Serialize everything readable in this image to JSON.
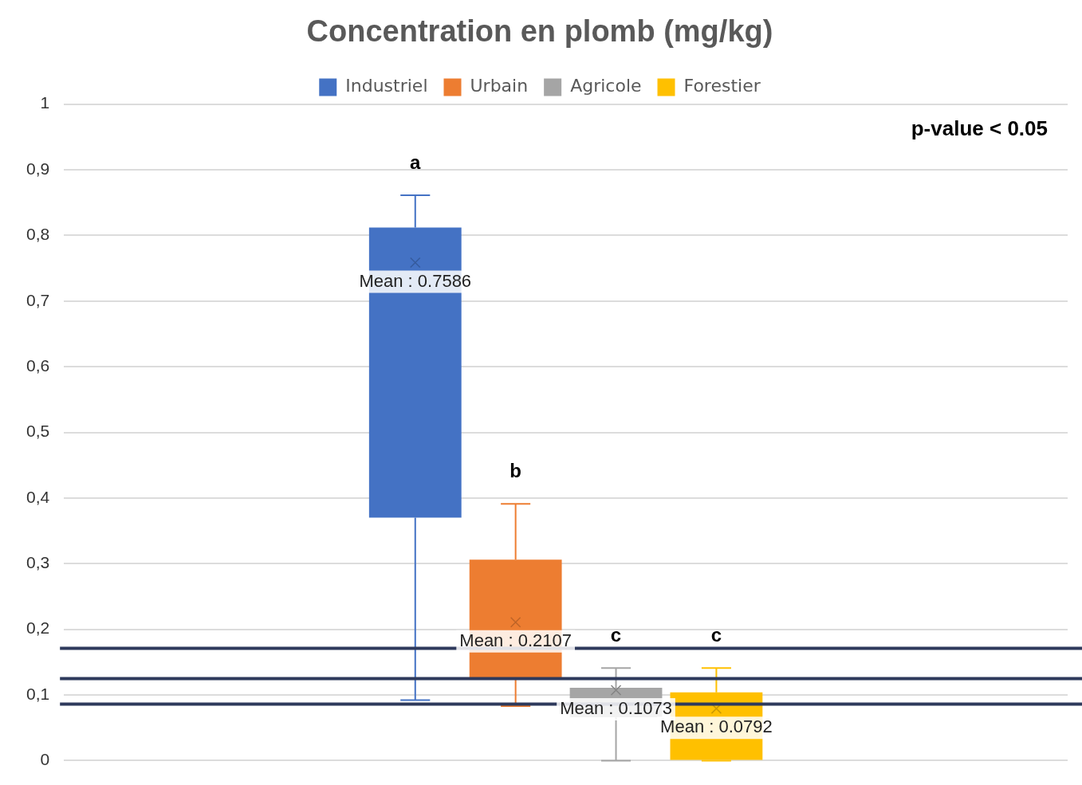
{
  "chart_data": {
    "type": "box",
    "title": "Concentration en plomb (mg/kg)",
    "categories": [
      null
    ],
    "series": [
      {
        "name": "Industriel",
        "color": "#4472c4",
        "boxes": [
          {
            "low": 0.092,
            "q1": 0.37,
            "q3": 0.812,
            "high": 0.861,
            "mean": 0.7586
          }
        ]
      },
      {
        "name": "Urbain",
        "color": "#ed7d31",
        "boxes": [
          {
            "low": 0.083,
            "q1": 0.124,
            "q3": 0.306,
            "high": 0.391,
            "mean": 0.2107
          }
        ]
      },
      {
        "name": "Agricole",
        "color": "#a5a5a5",
        "boxes": [
          {
            "low": 0,
            "q1": 0.066,
            "q3": 0.111,
            "high": 0.141,
            "mean": 0.1073
          }
        ]
      },
      {
        "name": "Forestier",
        "color": "#ffc000",
        "boxes": [
          {
            "low": 0,
            "q1": 0,
            "q3": 0.104,
            "high": 0.141,
            "mean": 0.0792
          }
        ]
      }
    ],
    "ylim": [
      0,
      1
    ],
    "yticks": [
      0,
      {
        "value": 0.1,
        "label": "0,1"
      },
      {
        "value": 0.2,
        "label": "0,2"
      },
      {
        "value": 0.3,
        "label": "0,3"
      },
      {
        "value": 0.4,
        "label": "0,4"
      },
      {
        "value": 0.5,
        "label": "0,5"
      },
      {
        "value": 0.6,
        "label": "0,6"
      },
      {
        "value": 0.7,
        "label": "0,7"
      },
      {
        "value": 0.8,
        "label": "0,8"
      },
      {
        "value": 0.9,
        "label": "0,9"
      },
      1
    ],
    "grid": "y",
    "legend": "top",
    "tick_labels": "y",
    "ref_lines": [
      {
        "axis": "y",
        "value": 0.171,
        "color": "#2e3a5c"
      },
      {
        "axis": "y",
        "value": 0.125,
        "color": "#2e3a5c"
      },
      {
        "axis": "y",
        "value": 0.086,
        "color": "#2e3a5c"
      }
    ],
    "annotations": [
      "p-value < 0.05",
      "a",
      "b",
      "c",
      "c",
      "Mean : 0.7586",
      "Mean : 0.2107",
      "Mean : 0.1073",
      "Mean : 0.0792"
    ]
  }
}
